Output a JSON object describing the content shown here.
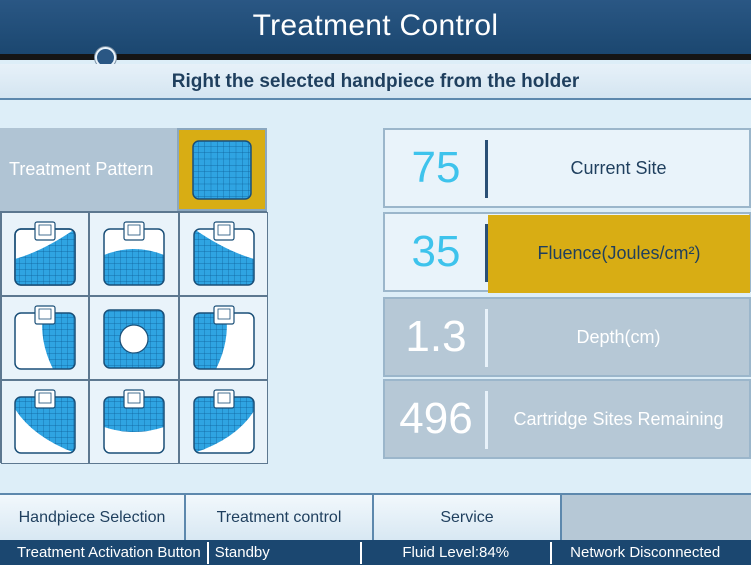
{
  "header": {
    "title": "Treatment Control"
  },
  "message": "Right the selected handpiece from the holder",
  "pattern": {
    "label": "Treatment Pattern",
    "cells": [
      {
        "name": "pattern-diagonal-left-bottom"
      },
      {
        "name": "pattern-bottom-arc"
      },
      {
        "name": "pattern-diagonal-right-bottom"
      },
      {
        "name": "pattern-left-half"
      },
      {
        "name": "pattern-center-hole"
      },
      {
        "name": "pattern-right-half"
      },
      {
        "name": "pattern-upper-left-arc"
      },
      {
        "name": "pattern-top-arc"
      },
      {
        "name": "pattern-upper-right-arc"
      }
    ]
  },
  "params": {
    "current_site": {
      "value": "75",
      "label": "Current Site"
    },
    "fluence": {
      "value": "35",
      "label": "Fluence(Joules/cm²)"
    },
    "depth": {
      "value": "1.3",
      "label": "Depth(cm)"
    },
    "cartridge": {
      "value": "496",
      "label": "Cartridge Sites Remaining"
    }
  },
  "nav": {
    "handpiece": "Handpiece Selection",
    "treatment": "Treatment control",
    "service": "Service"
  },
  "status": {
    "activation": "Treatment Activation Button",
    "state": "Standby",
    "fluid": "Fluid Level:84%",
    "network": "Network Disconnected"
  },
  "colors": {
    "header": "#1b4770",
    "accent": "#d8ad14",
    "value_cyan": "#3ec3ec",
    "grid_fill": "#2fa4e2"
  }
}
